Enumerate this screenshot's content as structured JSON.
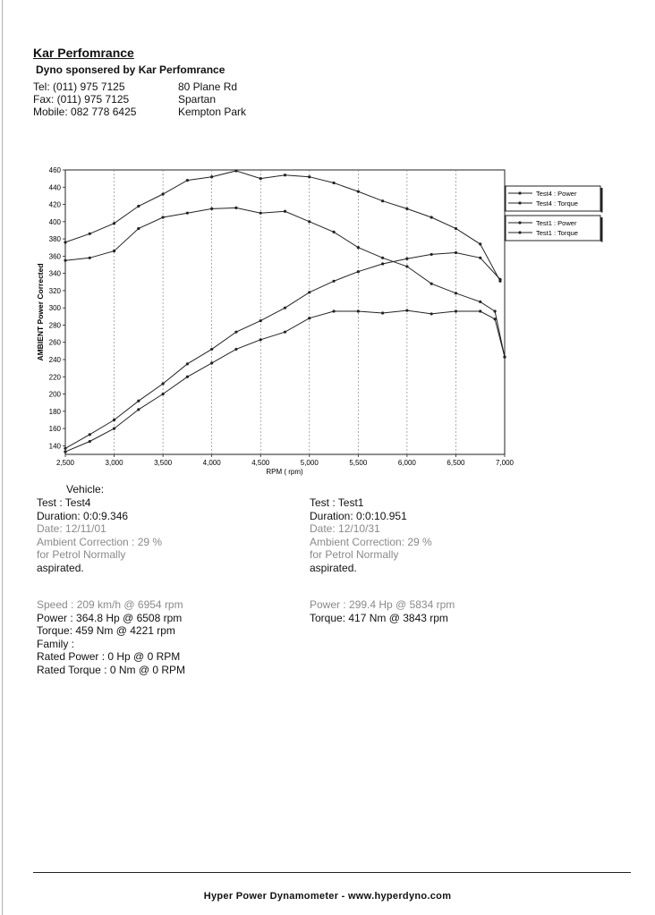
{
  "header": {
    "company": "Kar Perfomrance",
    "subtitle": "Dyno sponsered by Kar Perfomrance",
    "contact_left": [
      "Tel: (011) 975 7125",
      "Fax: (011) 975 7125",
      "Mobile: 082 778 6425"
    ],
    "contact_right": [
      "80 Plane Rd",
      "Spartan",
      "Kempton Park"
    ]
  },
  "chart_data": {
    "type": "line",
    "xlabel": "RPM ( rpm)",
    "ylabel": "AMBIENT Power Corrected",
    "xlim": [
      2500,
      7000
    ],
    "ylim": [
      130,
      460
    ],
    "x_ticks": [
      "2,500",
      "3,000",
      "3,500",
      "4,000",
      "4,500",
      "5,000",
      "5,500",
      "6,000",
      "6,500",
      "7,000"
    ],
    "y_ticks": [
      "140",
      "160",
      "180",
      "200",
      "220",
      "240",
      "260",
      "280",
      "300",
      "320",
      "340",
      "360",
      "380",
      "400",
      "420",
      "440",
      "460"
    ],
    "grid": "vertical",
    "legend_position": "top-right",
    "legend_groups": [
      [
        "Test4 : Power",
        "Test4 : Torque"
      ],
      [
        "Test1 : Power",
        "Test1 : Torque"
      ]
    ],
    "series": [
      {
        "name": "Test4 : Power",
        "color": "#222222",
        "x": [
          2500,
          2750,
          3000,
          3250,
          3500,
          3750,
          4000,
          4250,
          4500,
          4750,
          5000,
          5250,
          5500,
          5750,
          6000,
          6250,
          6500,
          6750,
          6954
        ],
        "y": [
          137,
          153,
          170,
          192,
          212,
          235,
          252,
          272,
          285,
          300,
          318,
          331,
          342,
          351,
          357,
          362,
          364,
          358,
          333
        ]
      },
      {
        "name": "Test4 : Torque",
        "color": "#222222",
        "x": [
          2500,
          2750,
          3000,
          3250,
          3500,
          3750,
          4000,
          4250,
          4500,
          4750,
          5000,
          5250,
          5500,
          5750,
          6000,
          6250,
          6500,
          6750,
          6954
        ],
        "y": [
          376,
          386,
          398,
          418,
          432,
          448,
          452,
          459,
          450,
          454,
          452,
          445,
          435,
          424,
          415,
          405,
          392,
          374,
          331
        ]
      },
      {
        "name": "Test1 : Power",
        "color": "#222222",
        "x": [
          2500,
          2750,
          3000,
          3250,
          3500,
          3750,
          4000,
          4250,
          4500,
          4750,
          5000,
          5250,
          5500,
          5750,
          6000,
          6250,
          6500,
          6750,
          6900,
          7000
        ],
        "y": [
          133,
          145,
          160,
          182,
          200,
          220,
          236,
          252,
          263,
          272,
          288,
          296,
          296,
          294,
          297,
          293,
          296,
          296,
          287,
          243
        ]
      },
      {
        "name": "Test1 : Torque",
        "color": "#222222",
        "x": [
          2500,
          2750,
          3000,
          3250,
          3500,
          3750,
          4000,
          4250,
          4500,
          4750,
          5000,
          5250,
          5500,
          5750,
          6000,
          6250,
          6500,
          6750,
          6900,
          7000
        ],
        "y": [
          355,
          358,
          366,
          392,
          405,
          410,
          415,
          416,
          410,
          412,
          400,
          388,
          370,
          358,
          348,
          328,
          317,
          307,
          296,
          243
        ]
      }
    ]
  },
  "left": {
    "vehicle": "Vehicle:",
    "test": "Test    : Test4",
    "duration": "Duration: 0:0:9.346",
    "date": "Date: 12/11/01",
    "ambient": "Ambient Correction : 29 %",
    "for_petrol": " for Petrol Normally",
    "aspirated": "aspirated.",
    "speed": "Speed : 209 km/h @ 6954 rpm",
    "power": "Power : 364.8 Hp @ 6508 rpm",
    "torque": "Torque: 459 Nm @ 4221 rpm",
    "family": "Family :",
    "rated_power": "Rated Power : 0 Hp @ 0 RPM",
    "rated_torque": "Rated Torque : 0 Nm @ 0 RPM"
  },
  "right": {
    "test": "Test    : Test1",
    "duration": "Duration: 0:0:10.951",
    "date": "Date: 12/10/31",
    "ambient": "Ambient Correction: 29 %",
    "for_petrol": " for Petrol Normally",
    "aspirated": "aspirated.",
    "power": "Power : 299.4 Hp @ 5834 rpm",
    "torque": "Torque: 417 Nm @ 3843 rpm"
  },
  "footer": "Hyper Power Dynamometer  -  www.hyperdyno.com"
}
